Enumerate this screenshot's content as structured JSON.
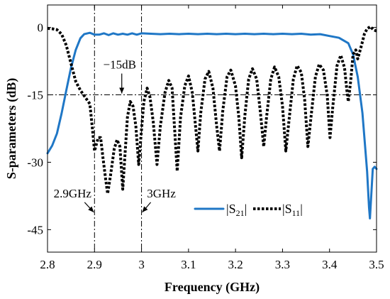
{
  "chart_data": {
    "type": "line",
    "xlabel": "Frequency (GHz)",
    "ylabel": "S-parameters (dB)",
    "xlim": [
      2.8,
      3.5
    ],
    "ylim": [
      -50,
      5
    ],
    "xticks": [
      2.8,
      2.9,
      3.0,
      3.1,
      3.2,
      3.3,
      3.4,
      3.5
    ],
    "xtick_labels": [
      "2.8",
      "2.9",
      "3",
      "3.1",
      "3.2",
      "3.3",
      "3.4",
      "3.5"
    ],
    "yticks": [
      0,
      -15,
      -30,
      -45
    ],
    "ytick_labels": [
      "0",
      "-15",
      "-30",
      "-45"
    ],
    "grid": false,
    "legend_position": "lower-right",
    "series": [
      {
        "name": "|S21|",
        "color": "#1f77c6",
        "style": "solid",
        "points": [
          [
            2.8,
            -28.0
          ],
          [
            2.81,
            -26.3
          ],
          [
            2.82,
            -23.6
          ],
          [
            2.83,
            -19.1
          ],
          [
            2.84,
            -14.0
          ],
          [
            2.85,
            -9.0
          ],
          [
            2.86,
            -5.0
          ],
          [
            2.87,
            -2.4
          ],
          [
            2.878,
            -1.5
          ],
          [
            2.89,
            -1.2
          ],
          [
            2.9,
            -1.6
          ],
          [
            2.91,
            -1.6
          ],
          [
            2.92,
            -1.3
          ],
          [
            2.93,
            -1.7
          ],
          [
            2.94,
            -1.3
          ],
          [
            2.95,
            -1.6
          ],
          [
            2.96,
            -1.4
          ],
          [
            2.97,
            -1.6
          ],
          [
            2.98,
            -1.3
          ],
          [
            2.99,
            -1.6
          ],
          [
            3.0,
            -1.3
          ],
          [
            3.02,
            -1.4
          ],
          [
            3.04,
            -1.5
          ],
          [
            3.06,
            -1.4
          ],
          [
            3.08,
            -1.5
          ],
          [
            3.1,
            -1.4
          ],
          [
            3.12,
            -1.5
          ],
          [
            3.14,
            -1.4
          ],
          [
            3.16,
            -1.5
          ],
          [
            3.18,
            -1.4
          ],
          [
            3.2,
            -1.5
          ],
          [
            3.22,
            -1.4
          ],
          [
            3.24,
            -1.5
          ],
          [
            3.26,
            -1.4
          ],
          [
            3.28,
            -1.5
          ],
          [
            3.3,
            -1.4
          ],
          [
            3.32,
            -1.5
          ],
          [
            3.34,
            -1.4
          ],
          [
            3.36,
            -1.6
          ],
          [
            3.38,
            -1.5
          ],
          [
            3.4,
            -1.9
          ],
          [
            3.42,
            -2.3
          ],
          [
            3.44,
            -3.5
          ],
          [
            3.45,
            -6.0
          ],
          [
            3.46,
            -11.0
          ],
          [
            3.47,
            -19.0
          ],
          [
            3.48,
            -32.0
          ],
          [
            3.484,
            -40.0
          ],
          [
            3.486,
            -42.5
          ],
          [
            3.489,
            -37.0
          ],
          [
            3.492,
            -31.5
          ],
          [
            3.496,
            -31.0
          ],
          [
            3.5,
            -31.5
          ]
        ]
      },
      {
        "name": "|S11|",
        "color": "#000000",
        "style": "dotted",
        "points": [
          [
            2.8,
            -0.2
          ],
          [
            2.81,
            -0.3
          ],
          [
            2.82,
            -0.5
          ],
          [
            2.83,
            -1.5
          ],
          [
            2.84,
            -4.0
          ],
          [
            2.85,
            -8.0
          ],
          [
            2.86,
            -12.0
          ],
          [
            2.87,
            -14.0
          ],
          [
            2.88,
            -15.5
          ],
          [
            2.89,
            -17.0
          ],
          [
            2.895,
            -22.0
          ],
          [
            2.9,
            -27.5
          ],
          [
            2.904,
            -26.0
          ],
          [
            2.908,
            -24.5
          ],
          [
            2.913,
            -24.5
          ],
          [
            2.918,
            -29.0
          ],
          [
            2.924,
            -34.0
          ],
          [
            2.928,
            -37.0
          ],
          [
            2.934,
            -33.0
          ],
          [
            2.942,
            -27.0
          ],
          [
            2.948,
            -25.0
          ],
          [
            2.954,
            -26.5
          ],
          [
            2.96,
            -36.0
          ],
          [
            2.965,
            -28.0
          ],
          [
            2.97,
            -20.0
          ],
          [
            2.976,
            -16.5
          ],
          [
            2.982,
            -17.5
          ],
          [
            2.988,
            -22.0
          ],
          [
            2.994,
            -30.5
          ],
          [
            2.999,
            -24.0
          ],
          [
            3.005,
            -16.5
          ],
          [
            3.012,
            -13.5
          ],
          [
            3.018,
            -15.5
          ],
          [
            3.025,
            -21.0
          ],
          [
            3.033,
            -30.5
          ],
          [
            3.04,
            -22.0
          ],
          [
            3.05,
            -14.5
          ],
          [
            3.058,
            -11.8
          ],
          [
            3.065,
            -13.5
          ],
          [
            3.07,
            -22.0
          ],
          [
            3.076,
            -32.0
          ],
          [
            3.083,
            -20.0
          ],
          [
            3.092,
            -13.0
          ],
          [
            3.1,
            -10.8
          ],
          [
            3.108,
            -14.5
          ],
          [
            3.115,
            -22.0
          ],
          [
            3.12,
            -27.5
          ],
          [
            3.126,
            -19.0
          ],
          [
            3.135,
            -11.5
          ],
          [
            3.143,
            -9.8
          ],
          [
            3.152,
            -13.5
          ],
          [
            3.16,
            -22.0
          ],
          [
            3.166,
            -27.5
          ],
          [
            3.173,
            -18.5
          ],
          [
            3.182,
            -11.0
          ],
          [
            3.19,
            -9.5
          ],
          [
            3.2,
            -13.0
          ],
          [
            3.207,
            -20.0
          ],
          [
            3.213,
            -29.0
          ],
          [
            3.22,
            -19.5
          ],
          [
            3.228,
            -11.5
          ],
          [
            3.236,
            -9.2
          ],
          [
            3.245,
            -11.5
          ],
          [
            3.253,
            -19.0
          ],
          [
            3.26,
            -26.5
          ],
          [
            3.266,
            -20.0
          ],
          [
            3.275,
            -11.5
          ],
          [
            3.283,
            -8.8
          ],
          [
            3.292,
            -11.0
          ],
          [
            3.3,
            -17.5
          ],
          [
            3.307,
            -27.5
          ],
          [
            3.314,
            -20.5
          ],
          [
            3.323,
            -11.5
          ],
          [
            3.331,
            -8.5
          ],
          [
            3.34,
            -10.0
          ],
          [
            3.347,
            -16.0
          ],
          [
            3.354,
            -26.5
          ],
          [
            3.361,
            -19.5
          ],
          [
            3.37,
            -11.0
          ],
          [
            3.378,
            -8.2
          ],
          [
            3.387,
            -9.5
          ],
          [
            3.395,
            -15.0
          ],
          [
            3.401,
            -24.5
          ],
          [
            3.407,
            -17.5
          ],
          [
            3.416,
            -8.5
          ],
          [
            3.424,
            -6.2
          ],
          [
            3.432,
            -9.0
          ],
          [
            3.437,
            -14.0
          ],
          [
            3.44,
            -16.5
          ],
          [
            3.445,
            -12.0
          ],
          [
            3.45,
            -6.0
          ],
          [
            3.456,
            -5.0
          ],
          [
            3.46,
            -7.0
          ],
          [
            3.468,
            -4.0
          ],
          [
            3.474,
            -1.5
          ],
          [
            3.48,
            -0.3
          ],
          [
            3.487,
            0.2
          ],
          [
            3.493,
            -0.5
          ],
          [
            3.5,
            -0.8
          ]
        ]
      }
    ],
    "reference_lines": [
      {
        "orientation": "horizontal",
        "value": -15,
        "style": "dashdot"
      },
      {
        "orientation": "vertical",
        "value": 2.9,
        "style": "dashdot"
      },
      {
        "orientation": "vertical",
        "value": 3.0,
        "style": "dashdot"
      }
    ],
    "annotations": [
      {
        "text": "−15dB",
        "target": [
          2.958,
          -15
        ]
      },
      {
        "text": "2.9GHz",
        "target": [
          2.9,
          -40.5
        ]
      },
      {
        "text": "3GHz",
        "target": [
          3.0,
          -40.5
        ]
      }
    ]
  }
}
